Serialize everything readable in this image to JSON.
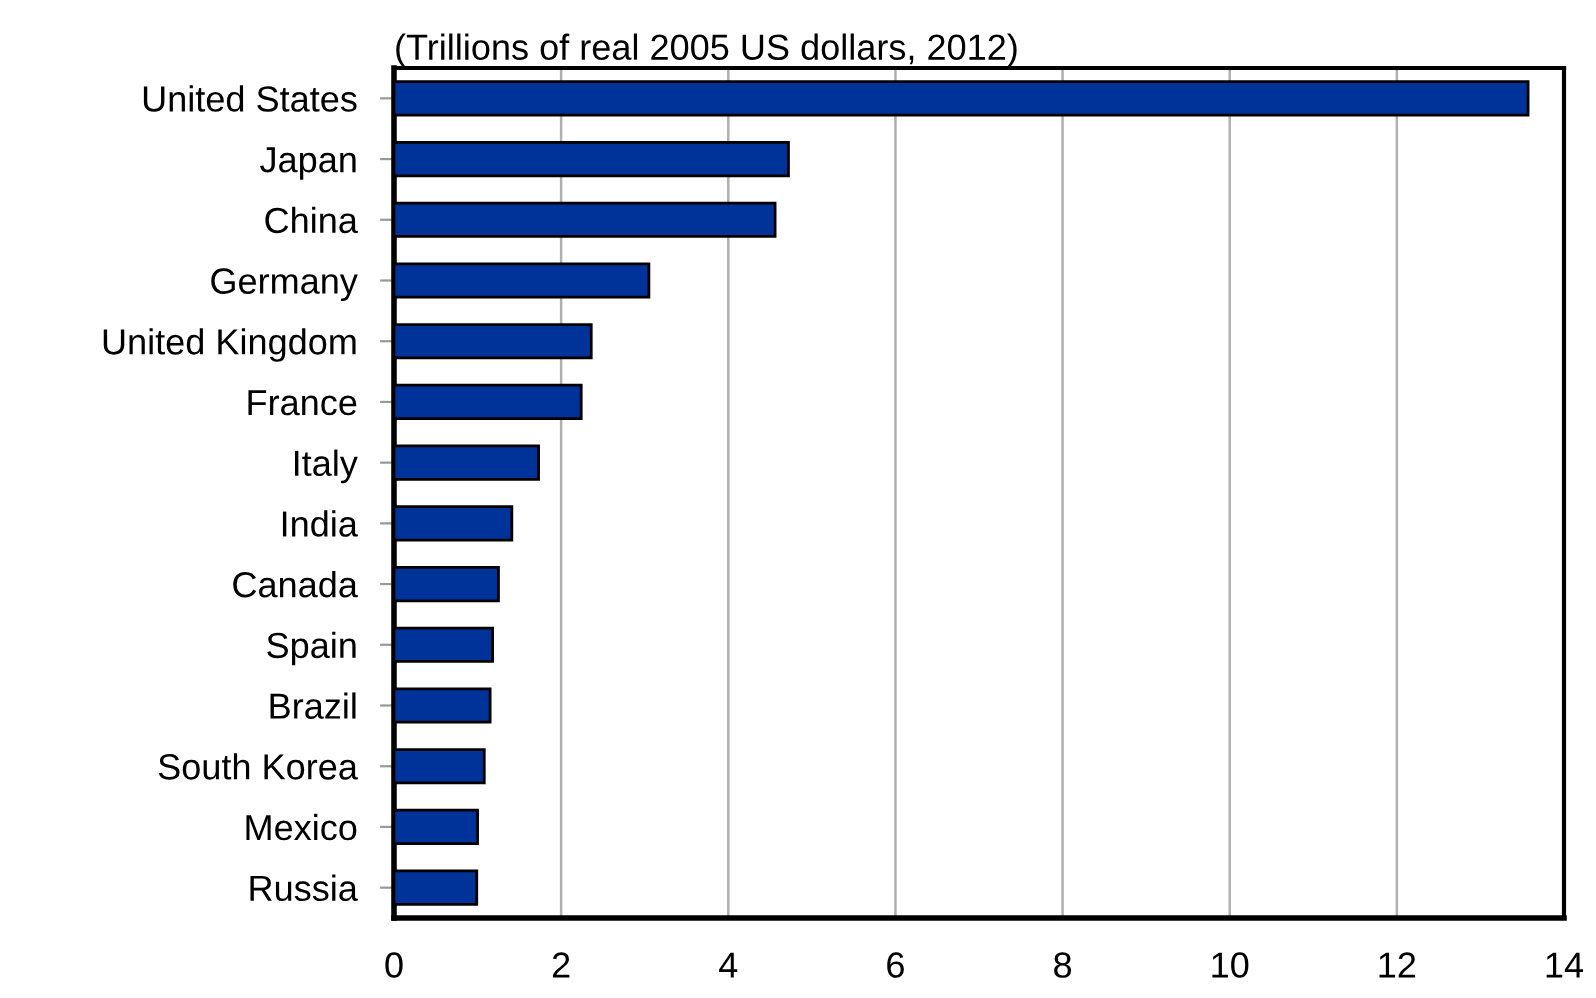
{
  "chart_data": {
    "type": "bar",
    "orientation": "horizontal",
    "title": "(Trillions of real 2005 US dollars, 2012)",
    "categories": [
      "United States",
      "Japan",
      "China",
      "Germany",
      "United Kingdom",
      "France",
      "Italy",
      "India",
      "Canada",
      "Spain",
      "Brazil",
      "South Korea",
      "Mexico",
      "Russia"
    ],
    "values": [
      13.57,
      4.72,
      4.56,
      3.05,
      2.36,
      2.24,
      1.73,
      1.41,
      1.25,
      1.18,
      1.15,
      1.08,
      1.0,
      0.99
    ],
    "color": "#003399",
    "xlim": [
      0,
      14
    ],
    "xticks": [
      0,
      2,
      4,
      6,
      8,
      10,
      12,
      14
    ],
    "grid": "x"
  }
}
